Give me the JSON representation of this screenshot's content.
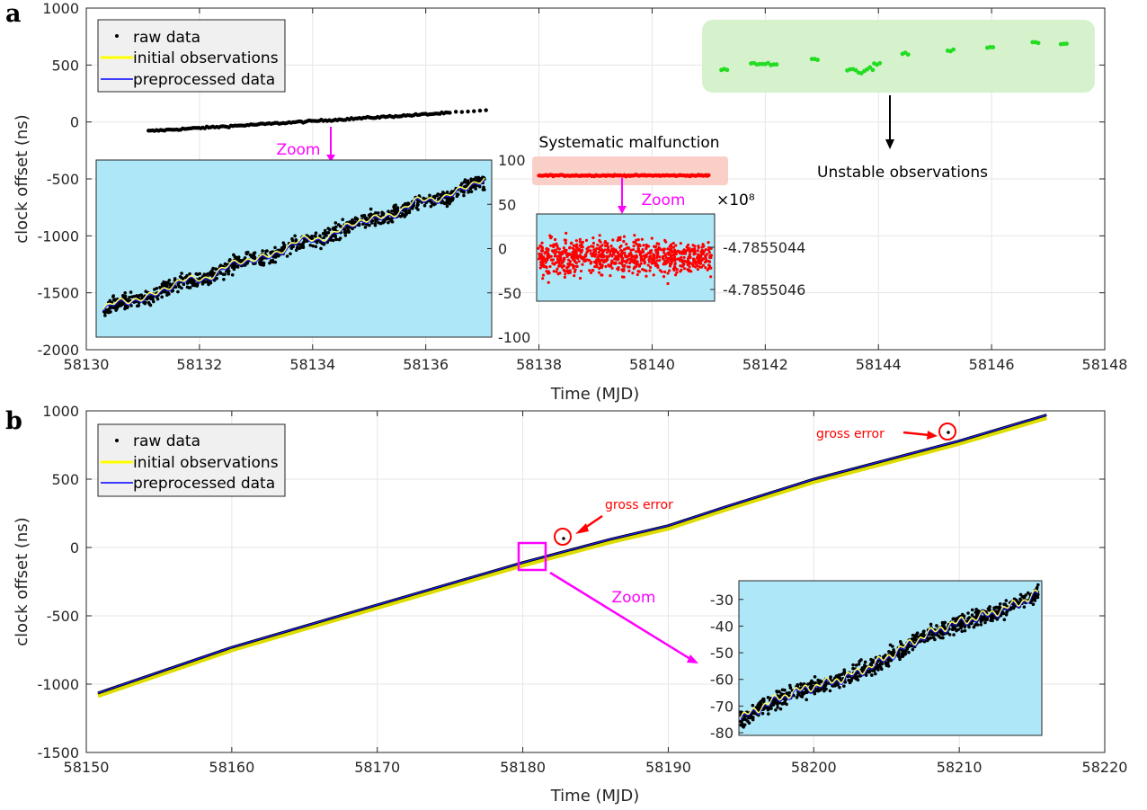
{
  "chart_data": [
    {
      "panel": "a",
      "type": "scatter",
      "xlabel": "Time (MJD)",
      "ylabel": "clock offset (ns)",
      "xlim": [
        58130,
        58148
      ],
      "ylim": [
        -2000,
        1000
      ],
      "xticks": [
        "58130",
        "58132",
        "58134",
        "58136",
        "58138",
        "58140",
        "58142",
        "58144",
        "58146",
        "58148"
      ],
      "yticks": [
        "-2000",
        "-1500",
        "-1000",
        "-500",
        "0",
        "500",
        "1000"
      ],
      "grid": true,
      "legend_position": "top-left",
      "legend": [
        "raw data",
        "initial observations",
        "preprocessed data"
      ],
      "series": [
        {
          "name": "raw data",
          "color": "#000000",
          "x": [
            58131.1,
            58137.1
          ],
          "y": [
            -80,
            100
          ]
        },
        {
          "name": "initial observations",
          "color": "#ffff00"
        },
        {
          "name": "preprocessed data",
          "color": "#0000ff"
        },
        {
          "color": "#ff0000",
          "x": [
            58138.0,
            58141.0
          ],
          "y": [
            -470,
            -470
          ]
        },
        {
          "color": "#00dd00",
          "x": [
            58141.3,
            58142.0,
            58142.9,
            58143.7,
            58144.0,
            58144.5,
            58145.3,
            58146.0,
            58146.8,
            58147.3
          ],
          "y": [
            460,
            510,
            550,
            450,
            510,
            600,
            630,
            660,
            700,
            690
          ]
        }
      ],
      "annotations": {
        "zoom": "Zoom",
        "systematic_malfunction": "Systematic malfunction",
        "unstable_observations": "Unstable observations"
      },
      "insets": [
        {
          "name": "zoom raw data",
          "yticks": [
            "100",
            "50",
            "0",
            "-50",
            "-100"
          ],
          "ylim": [
            -100,
            100
          ],
          "y_start": -70,
          "y_end": 75
        },
        {
          "name": "zoom systematic malfunction",
          "exponent_label": "×10⁸",
          "yticks": [
            "-4.7855044",
            "-4.7855046"
          ]
        }
      ]
    },
    {
      "panel": "b",
      "type": "line",
      "xlabel": "Time (MJD)",
      "ylabel": "clock offset (ns)",
      "xlim": [
        58150,
        58220
      ],
      "ylim": [
        -1500,
        1000
      ],
      "xticks": [
        "58150",
        "58160",
        "58170",
        "58180",
        "58190",
        "58200",
        "58210",
        "58220"
      ],
      "yticks": [
        "-1500",
        "-1000",
        "-500",
        "0",
        "500",
        "1000"
      ],
      "grid": true,
      "legend_position": "top-left",
      "legend": [
        "raw data",
        "initial observations",
        "preprocessed data"
      ],
      "series": [
        {
          "name": "preprocessed data",
          "color": "#0000ff",
          "x": [
            58150.8,
            58160,
            58170,
            58180,
            58186,
            58190,
            58194,
            58200,
            58210,
            58216
          ],
          "y": [
            -1065,
            -730,
            -420,
            -110,
            60,
            160,
            300,
            500,
            780,
            970
          ]
        }
      ],
      "gross_errors": [
        {
          "label": "gross error",
          "x": 58183,
          "y": 65
        },
        {
          "label": "gross error",
          "x": 58209.6,
          "y": 850
        }
      ],
      "annotations": {
        "zoom": "Zoom"
      },
      "inset": {
        "name": "zoom",
        "yticks": [
          "-30",
          "-40",
          "-50",
          "-60",
          "-70",
          "-80"
        ],
        "ylim": [
          -81,
          -23
        ],
        "y_start": -75,
        "y_end": -27
      }
    }
  ],
  "labels": {
    "panel_a": "a",
    "panel_b": "b"
  }
}
